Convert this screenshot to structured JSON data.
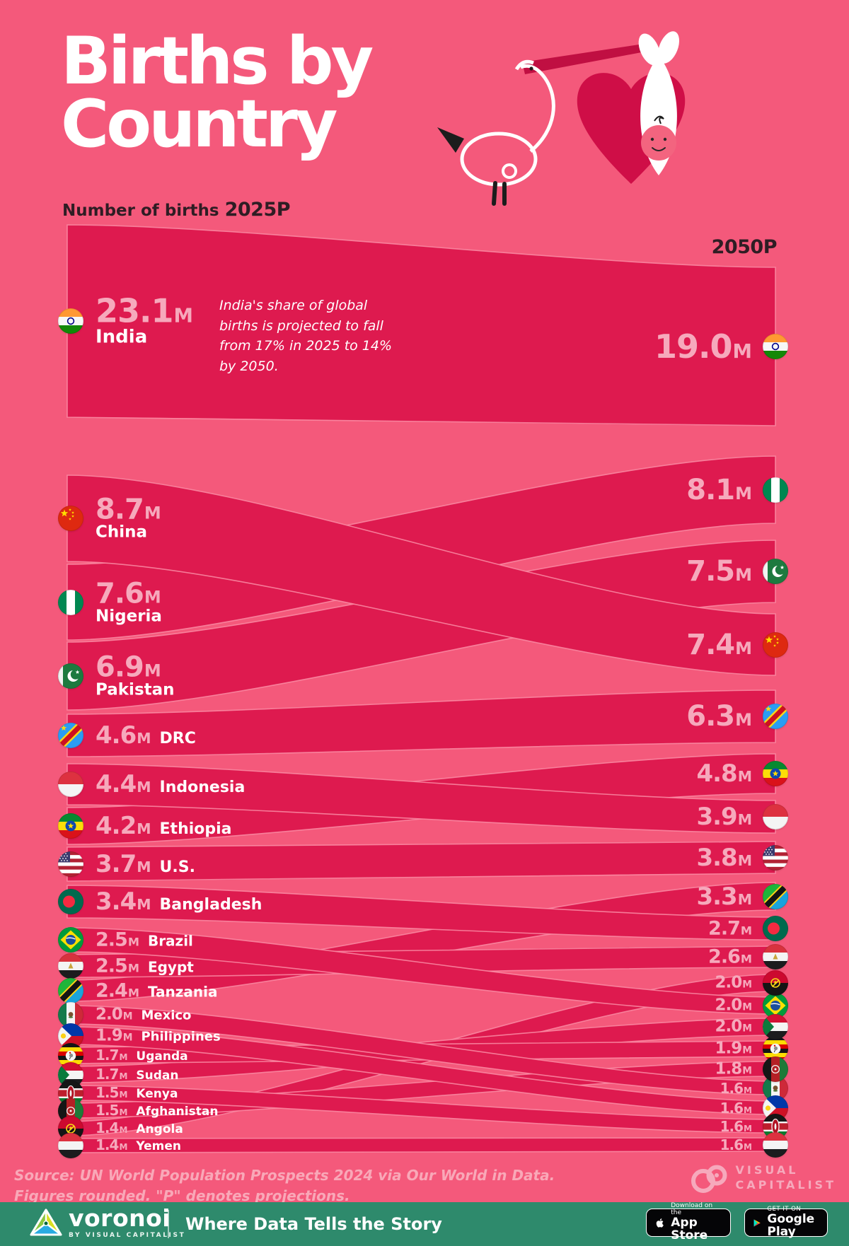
{
  "header": {
    "title_line1": "Births by",
    "title_line2": "Country",
    "axis_left_label": "Number of births",
    "axis_left_year": "2025P",
    "axis_right_year": "2050P"
  },
  "annotation": {
    "text": "India's share of global births is projected to fall from 17% in 2025 to 14% by 2050."
  },
  "chart_data": {
    "type": "sankey",
    "title": "Births by Country",
    "unit": "millions of births",
    "columns": [
      "2025P",
      "2050P"
    ],
    "countries": [
      {
        "name": "India",
        "flag": "india",
        "v2025": 23.1,
        "v2050": 19.0
      },
      {
        "name": "China",
        "flag": "china",
        "v2025": 8.7,
        "v2050": 7.4
      },
      {
        "name": "Nigeria",
        "flag": "nigeria",
        "v2025": 7.6,
        "v2050": 8.1
      },
      {
        "name": "Pakistan",
        "flag": "pakistan",
        "v2025": 6.9,
        "v2050": 7.5
      },
      {
        "name": "DRC",
        "flag": "drc",
        "v2025": 4.6,
        "v2050": 6.3
      },
      {
        "name": "Indonesia",
        "flag": "indonesia",
        "v2025": 4.4,
        "v2050": 3.9
      },
      {
        "name": "Ethiopia",
        "flag": "ethiopia",
        "v2025": 4.2,
        "v2050": 4.8
      },
      {
        "name": "U.S.",
        "flag": "us",
        "v2025": 3.7,
        "v2050": 3.8
      },
      {
        "name": "Bangladesh",
        "flag": "bangladesh",
        "v2025": 3.4,
        "v2050": 2.7
      },
      {
        "name": "Brazil",
        "flag": "brazil",
        "v2025": 2.5,
        "v2050": 2.0
      },
      {
        "name": "Egypt",
        "flag": "egypt",
        "v2025": 2.5,
        "v2050": 2.6
      },
      {
        "name": "Tanzania",
        "flag": "tanzania",
        "v2025": 2.4,
        "v2050": 3.3
      },
      {
        "name": "Mexico",
        "flag": "mexico",
        "v2025": 2.0,
        "v2050": 1.6
      },
      {
        "name": "Philippines",
        "flag": "philippines",
        "v2025": 1.9,
        "v2050": 1.6
      },
      {
        "name": "Uganda",
        "flag": "uganda",
        "v2025": 1.7,
        "v2050": 1.9
      },
      {
        "name": "Sudan",
        "flag": "sudan",
        "v2025": 1.7,
        "v2050": 2.0
      },
      {
        "name": "Kenya",
        "flag": "kenya",
        "v2025": 1.5,
        "v2050": 1.6
      },
      {
        "name": "Afghanistan",
        "flag": "afghanistan",
        "v2025": 1.5,
        "v2050": 1.8
      },
      {
        "name": "Angola",
        "flag": "angola",
        "v2025": 1.4,
        "v2050": 2.0
      },
      {
        "name": "Yemen",
        "flag": "yemen",
        "v2025": 1.4,
        "v2050": 1.6
      }
    ],
    "right_order": [
      "India",
      "Nigeria",
      "Pakistan",
      "China",
      "DRC",
      "Ethiopia",
      "Indonesia",
      "U.S.",
      "Tanzania",
      "Bangladesh",
      "Egypt",
      "Angola",
      "Brazil",
      "Sudan",
      "Uganda",
      "Afghanistan",
      "Mexico",
      "Philippines",
      "Kenya",
      "Yemen"
    ],
    "annotation": "India's share of global births is projected to fall from 17% in 2025 to 14% by 2050."
  },
  "footer": {
    "source_line1": "Source: UN World Population Prospects 2024 via Our World in Data.",
    "source_line2": "Figures rounded. \"P\" denotes projections.",
    "brand_line1": "VISUAL",
    "brand_line2": "CAPITALIST"
  },
  "footerbar": {
    "wordmark": "voronoi",
    "wordmark_sub": "BY VISUAL CAPITALIST",
    "tagline": "Where Data Tells the Story",
    "appstore_pre": "Download on the",
    "appstore_name": "App Store",
    "gplay_pre": "GET IT ON",
    "gplay_name": "Google Play"
  },
  "colors": {
    "background": "#F4597B",
    "band": "#DE1A4F",
    "value_text": "#F6A9BC",
    "heart": "#CF0E47",
    "dark_text": "#2F1D24",
    "footer_green": "#2E8A6C"
  }
}
